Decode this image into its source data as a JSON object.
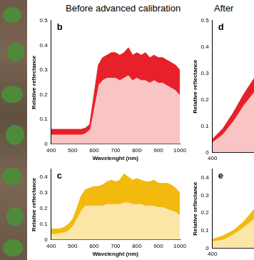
{
  "headings": [
    "Before advanced calibration",
    "After"
  ],
  "chart_data": [
    {
      "type": "line",
      "title": "b",
      "x_label": "Wavelenght (nm)",
      "y_label": "Relative reflectance",
      "x": [
        400,
        420,
        440,
        460,
        480,
        500,
        520,
        540,
        560,
        580,
        600,
        620,
        640,
        660,
        680,
        700,
        720,
        740,
        760,
        780,
        800,
        820,
        840,
        860,
        880,
        900,
        920,
        940,
        960,
        980,
        1000
      ],
      "series": [
        {
          "color": "#e8202a",
          "values": [
            0.06,
            0.06,
            0.06,
            0.06,
            0.06,
            0.06,
            0.06,
            0.06,
            0.065,
            0.08,
            0.2,
            0.32,
            0.35,
            0.36,
            0.37,
            0.37,
            0.36,
            0.37,
            0.39,
            0.36,
            0.37,
            0.36,
            0.37,
            0.35,
            0.36,
            0.35,
            0.35,
            0.34,
            0.33,
            0.32,
            0.3
          ]
        },
        {
          "color": "#f9c4c4",
          "values": [
            0.04,
            0.04,
            0.04,
            0.04,
            0.04,
            0.04,
            0.04,
            0.04,
            0.045,
            0.06,
            0.15,
            0.24,
            0.26,
            0.27,
            0.27,
            0.27,
            0.26,
            0.27,
            0.28,
            0.26,
            0.27,
            0.26,
            0.26,
            0.25,
            0.26,
            0.25,
            0.25,
            0.24,
            0.23,
            0.22,
            0.2
          ]
        }
      ],
      "xlim": [
        400,
        1000
      ],
      "xticks": [
        400,
        500,
        600,
        700,
        800,
        900,
        1000
      ],
      "ylim": [
        0,
        0.5
      ],
      "yticks": [
        0,
        0.1,
        0.2,
        0.3,
        0.4,
        0.5
      ],
      "grid": false
    },
    {
      "type": "line",
      "title": "c",
      "x_label": "Wavelenght (nm)",
      "y_label": "Relative reflectance",
      "x": [
        400,
        420,
        440,
        460,
        480,
        500,
        520,
        540,
        560,
        580,
        600,
        620,
        640,
        660,
        680,
        700,
        720,
        740,
        760,
        780,
        800,
        820,
        840,
        860,
        880,
        900,
        920,
        940,
        960,
        980,
        1000
      ],
      "series": [
        {
          "color": "#f2b90f",
          "values": [
            0.07,
            0.07,
            0.07,
            0.08,
            0.1,
            0.13,
            0.2,
            0.28,
            0.32,
            0.33,
            0.34,
            0.34,
            0.35,
            0.37,
            0.38,
            0.37,
            0.38,
            0.42,
            0.4,
            0.38,
            0.39,
            0.38,
            0.37,
            0.37,
            0.38,
            0.36,
            0.36,
            0.36,
            0.35,
            0.33,
            0.3
          ]
        },
        {
          "color": "#fbe6a8",
          "values": [
            0.04,
            0.04,
            0.045,
            0.05,
            0.06,
            0.09,
            0.14,
            0.19,
            0.22,
            0.22,
            0.22,
            0.22,
            0.22,
            0.23,
            0.23,
            0.23,
            0.23,
            0.24,
            0.24,
            0.23,
            0.23,
            0.23,
            0.22,
            0.22,
            0.22,
            0.21,
            0.21,
            0.2,
            0.19,
            0.18,
            0.16
          ]
        }
      ],
      "xlim": [
        400,
        1000
      ],
      "xticks": [
        400,
        500,
        600,
        700,
        800,
        900,
        1000
      ],
      "ylim": [
        0,
        0.45
      ],
      "yticks": [
        0,
        0.1,
        0.2,
        0.3,
        0.4
      ],
      "grid": false
    },
    {
      "type": "line",
      "title": "d",
      "y_label": "Relative reflectance",
      "x": [
        400,
        420,
        440,
        460,
        480
      ],
      "series": [
        {
          "color": "#e8202a",
          "values": [
            0.05,
            0.09,
            0.15,
            0.22,
            0.28
          ]
        },
        {
          "color": "#f9c4c4",
          "values": [
            0.04,
            0.07,
            0.12,
            0.18,
            0.23
          ]
        }
      ],
      "xlim": [
        400,
        480
      ],
      "xticks": [
        400
      ],
      "ylim": [
        0,
        0.5
      ],
      "yticks": [
        0,
        0.1,
        0.2,
        0.3,
        0.4,
        0.5
      ],
      "grid": false
    },
    {
      "type": "line",
      "title": "e",
      "y_label": "Relative reflectance",
      "x": [
        400,
        420,
        440,
        460,
        480
      ],
      "series": [
        {
          "color": "#f2b90f",
          "values": [
            0.05,
            0.07,
            0.1,
            0.15,
            0.22
          ]
        },
        {
          "color": "#fbe6a8",
          "values": [
            0.04,
            0.05,
            0.08,
            0.12,
            0.17
          ]
        }
      ],
      "xlim": [
        400,
        480
      ],
      "xticks": [
        400
      ],
      "ylim": [
        0,
        0.45
      ],
      "yticks": [
        0,
        0.1,
        0.2,
        0.3,
        0.4
      ],
      "grid": false
    }
  ]
}
